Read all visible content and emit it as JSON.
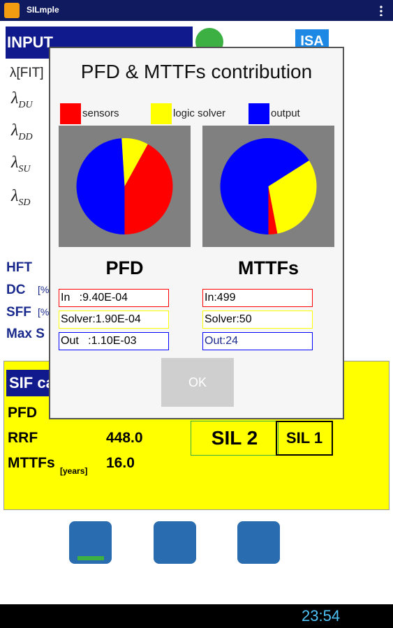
{
  "app_bar": {
    "title": "SILmple"
  },
  "background": {
    "input_header": "INPUT",
    "isa": "ISA",
    "lambda_fit": "λ[FIT]",
    "lambdas": [
      {
        "symbol": "λ",
        "sub": "DU"
      },
      {
        "symbol": "λ",
        "sub": "DD"
      },
      {
        "symbol": "λ",
        "sub": "SU"
      },
      {
        "symbol": "λ",
        "sub": "SD"
      }
    ],
    "params": [
      "HFT",
      "DC",
      "SFF",
      "Max S"
    ],
    "param_units": [
      "[%",
      "[%"
    ]
  },
  "sif": {
    "header": "SIF ca",
    "rows": [
      {
        "label": "PFD"
      },
      {
        "label": "RRF",
        "value": "448.0"
      },
      {
        "label": "MTTFs",
        "unit": "[years]",
        "value": "16.0"
      }
    ],
    "sil_badges": [
      "SIL 2",
      "SIL 1"
    ]
  },
  "dialog": {
    "title": "PFD & MTTFs contribution",
    "legend": [
      {
        "name": "sensors",
        "color": "#ff0000"
      },
      {
        "name": "logic solver",
        "color": "#ffff00"
      },
      {
        "name": "output",
        "color": "#0000ff"
      }
    ],
    "pies": [
      {
        "label": "PFD",
        "values": [
          42,
          9,
          49
        ],
        "rows": [
          "In   :9.40E-04",
          "Solver:1.90E-04",
          "Out   :1.10E-03"
        ]
      },
      {
        "label": "MTTFs",
        "values": [
          3,
          31,
          66
        ],
        "rows": [
          "In:499",
          "Solver:50",
          "Out:24"
        ]
      }
    ],
    "ok": "OK"
  },
  "status_bar": {
    "time": "23:54"
  }
}
